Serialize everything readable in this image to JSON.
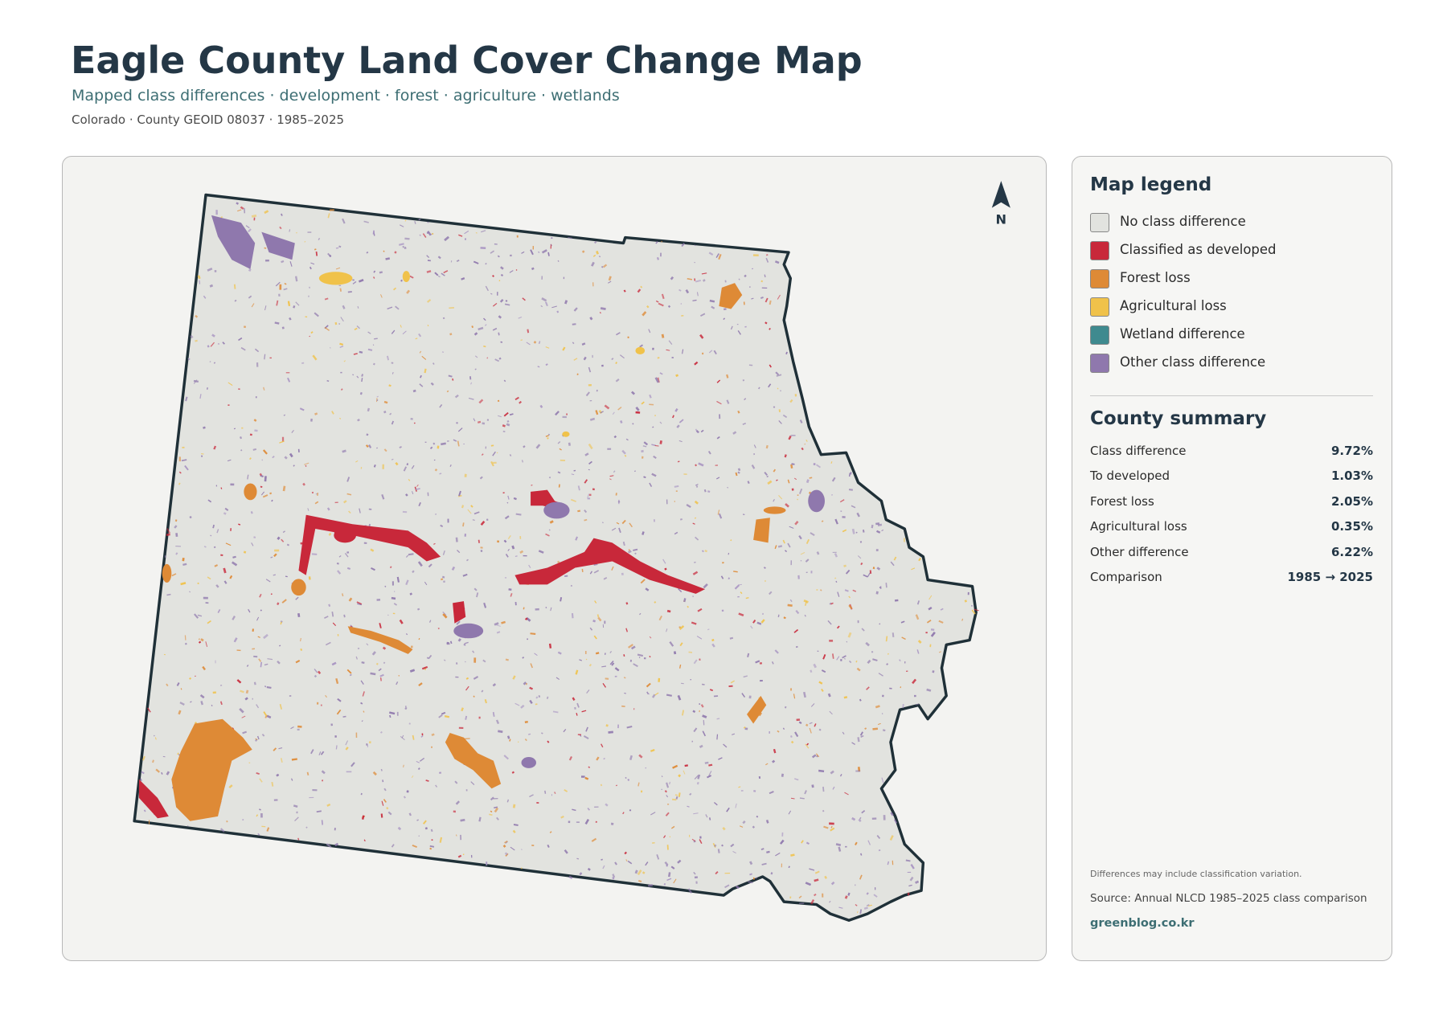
{
  "header": {
    "title": "Eagle County Land Cover Change Map",
    "subtitle": "Mapped class differences · development · forest · agriculture · wetlands",
    "meta": "Colorado · County GEOID 08037 · 1985–2025"
  },
  "map": {
    "north_label": "N"
  },
  "legend": {
    "title": "Map legend",
    "items": [
      {
        "label": "No class difference",
        "color": "#e2e3df"
      },
      {
        "label": "Classified as developed",
        "color": "#c8283a"
      },
      {
        "label": "Forest loss",
        "color": "#de8a36"
      },
      {
        "label": "Agricultural loss",
        "color": "#f0c24a"
      },
      {
        "label": "Wetland difference",
        "color": "#3f8a8f"
      },
      {
        "label": "Other class difference",
        "color": "#8f78ad"
      }
    ]
  },
  "summary": {
    "title": "County summary",
    "rows": [
      [
        "Class difference",
        "9.72%"
      ],
      [
        "To developed",
        "1.03%"
      ],
      [
        "Forest loss",
        "2.05%"
      ],
      [
        "Agricultural loss",
        "0.35%"
      ],
      [
        "Other difference",
        "6.22%"
      ],
      [
        "Comparison",
        "1985 → 2025"
      ]
    ]
  },
  "footer": {
    "note": "Differences may include classification variation.",
    "source": "Source: Annual NLCD 1985–2025 class comparison",
    "website": "greenblog.co.kr"
  }
}
